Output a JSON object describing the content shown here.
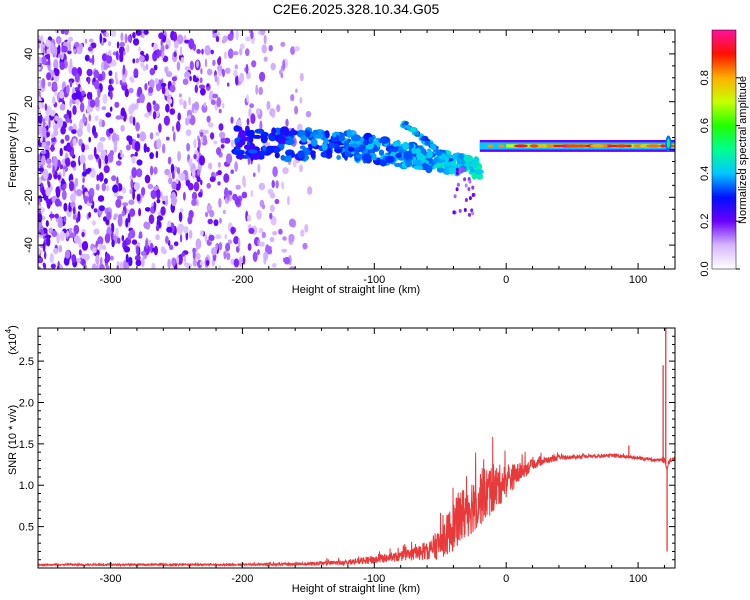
{
  "title": "C2E6.2025.328.10.34.G05",
  "chart_data": [
    {
      "type": "heatmap",
      "xlabel": "Height of straight line (km)",
      "ylabel": "Frequency (Hz)",
      "xlim": [
        -355,
        128
      ],
      "ylim": [
        -50,
        50
      ],
      "xticks": [
        -300,
        -200,
        -100,
        0,
        100
      ],
      "yticks": [
        -40,
        -20,
        0,
        20,
        40
      ],
      "colorbar": {
        "label": "Normalized spectral amplitude",
        "range": [
          0.0,
          1.0
        ],
        "ticks": [
          "0.0",
          "0.2",
          "0.4",
          "0.6",
          "0.8"
        ],
        "colormap": "rainbow (white-violet-blue-cyan-green-yellow-red-magenta)"
      },
      "features": [
        {
          "description": "scattered noise blobs",
          "x_range": [
            -355,
            -150
          ],
          "y_range": [
            -50,
            50
          ],
          "amplitude": "0.1-0.25"
        },
        {
          "description": "main frequency band, amplitude rising",
          "x_range": [
            -200,
            -20
          ],
          "y_center": [
            2,
            -8
          ],
          "amplitude": "0.3-0.45"
        },
        {
          "description": "upper diagonal branch",
          "x_start": [
            -78,
            11
          ],
          "x_end": [
            -42,
            -5
          ],
          "amplitude": "0.4"
        },
        {
          "description": "narrow steady band",
          "x_range": [
            -20,
            128
          ],
          "y_center": 1.5,
          "amplitude": "0.85-0.95"
        },
        {
          "description": "vertical spike near end",
          "x": 123,
          "y_range": [
            -3,
            8
          ]
        }
      ]
    },
    {
      "type": "line",
      "xlabel": "Height of straight line (km)",
      "ylabel": "SNR (10 * v/v)",
      "yscale_label": "(x10",
      "yscale_exponent": "4",
      "xlim": [
        -355,
        128
      ],
      "ylim": [
        0,
        2.9
      ],
      "xticks": [
        -300,
        -200,
        -100,
        0,
        100
      ],
      "yticks": [
        0.5,
        1.0,
        1.5,
        2.0,
        2.5
      ],
      "series_color": "#e83a3a",
      "envelope": {
        "x": [
          -355,
          -200,
          -150,
          -120,
          -100,
          -80,
          -60,
          -50,
          -40,
          -30,
          -20,
          -10,
          0,
          10,
          20,
          30,
          40,
          60,
          80,
          100,
          115,
          120,
          122,
          124,
          128
        ],
        "mean": [
          0.04,
          0.04,
          0.05,
          0.07,
          0.1,
          0.14,
          0.2,
          0.3,
          0.5,
          0.7,
          0.85,
          0.95,
          1.05,
          1.15,
          1.25,
          1.3,
          1.33,
          1.35,
          1.36,
          1.33,
          1.3,
          1.3,
          1.2,
          1.3,
          1.32
        ],
        "noise": [
          0.01,
          0.01,
          0.02,
          0.03,
          0.05,
          0.06,
          0.1,
          0.2,
          0.3,
          0.35,
          0.35,
          0.3,
          0.2,
          0.12,
          0.06,
          0.04,
          0.03,
          0.02,
          0.02,
          0.02,
          0.02,
          0.03,
          0.03,
          0.03,
          0.02
        ]
      },
      "spikes": [
        {
          "x": 0,
          "y": 1.0
        },
        {
          "x": 93,
          "y": 1.48
        },
        {
          "x": 119,
          "y": 2.45
        },
        {
          "x": 121,
          "y": 2.9
        },
        {
          "x": 122,
          "y": 0.2
        }
      ]
    }
  ]
}
